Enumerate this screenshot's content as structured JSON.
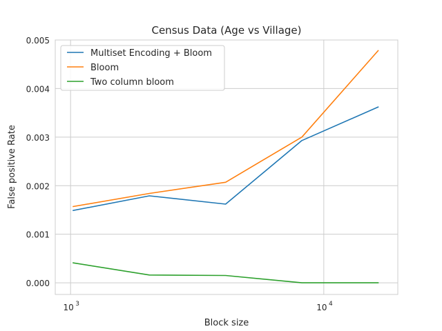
{
  "chart_data": {
    "type": "line",
    "title": "Census Data (Age vs Village)",
    "xlabel": "Block size",
    "ylabel": "False positive Rate",
    "x_scale": "log",
    "xlim": [
      870,
      19600
    ],
    "ylim": [
      -0.00024,
      0.005
    ],
    "x_ticks": [
      {
        "value": 1000,
        "base": "10",
        "exp": "3"
      },
      {
        "value": 10000,
        "base": "10",
        "exp": "4"
      }
    ],
    "y_ticks": [
      {
        "value": 0.0,
        "label": "0.000"
      },
      {
        "value": 0.001,
        "label": "0.001"
      },
      {
        "value": 0.002,
        "label": "0.002"
      },
      {
        "value": 0.003,
        "label": "0.003"
      },
      {
        "value": 0.004,
        "label": "0.004"
      },
      {
        "value": 0.005,
        "label": "0.005"
      }
    ],
    "grid": true,
    "legend_position": "top-left",
    "x": [
      1024,
      2048,
      4096,
      8192,
      16384
    ],
    "series": [
      {
        "name": "Multiset Encoding + Bloom",
        "color": "#1f77b4",
        "values": [
          0.00149,
          0.00179,
          0.00162,
          0.00293,
          0.00362
        ]
      },
      {
        "name": "Bloom",
        "color": "#ff7f0e",
        "values": [
          0.00157,
          0.00184,
          0.00207,
          0.003,
          0.00478
        ]
      },
      {
        "name": "Two column bloom",
        "color": "#2ca02c",
        "values": [
          0.00041,
          0.00016,
          0.00015,
          0.0,
          0.0
        ]
      }
    ]
  }
}
